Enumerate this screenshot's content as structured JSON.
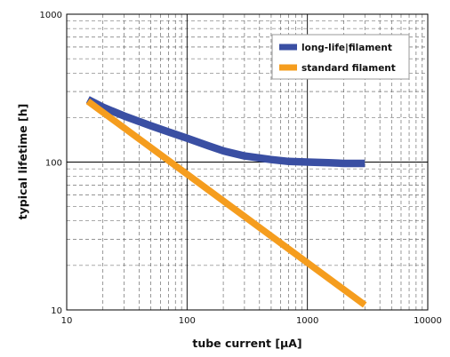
{
  "chart_data": {
    "type": "line",
    "title": "",
    "xlabel": "tube current [µA]",
    "ylabel": "typical lifetime [h]",
    "x_scale": "log",
    "y_scale": "log",
    "xlim": [
      10,
      10000
    ],
    "ylim": [
      10,
      1000
    ],
    "x_ticks": [
      10,
      100,
      1000,
      10000
    ],
    "y_ticks": [
      10,
      100,
      1000
    ],
    "x_tick_labels": [
      "10",
      "100",
      "1000",
      "10000"
    ],
    "y_tick_labels": [
      "10",
      "100",
      "1000"
    ],
    "grid": true,
    "legend_position": "top-right",
    "series": [
      {
        "name": "long-life|filament",
        "color": "#3a4fa3",
        "x": [
          15,
          20,
          30,
          50,
          70,
          100,
          150,
          200,
          300,
          500,
          700,
          1000,
          1500,
          2000,
          3000
        ],
        "y": [
          265,
          235,
          205,
          176,
          160,
          145,
          129,
          119,
          110,
          104,
          101,
          100,
          99,
          98,
          98
        ]
      },
      {
        "name": "standard filament",
        "color": "#f59d1e",
        "x": [
          15,
          3000
        ],
        "y": [
          258,
          10.8
        ]
      }
    ]
  }
}
